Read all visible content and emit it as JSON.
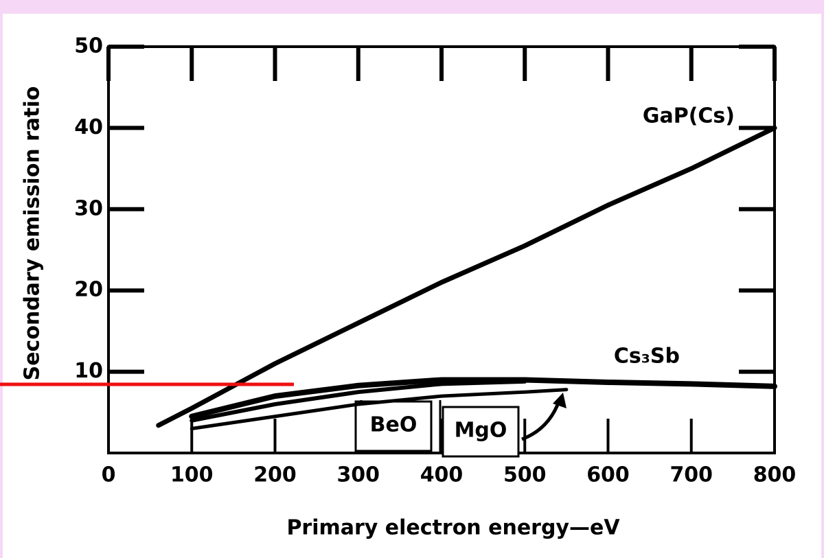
{
  "chart_data": {
    "type": "line",
    "xlabel": "Primary electron energy—eV",
    "ylabel": "Secondary emission ratio",
    "xlim": [
      0,
      800
    ],
    "xticks": [
      0,
      100,
      200,
      300,
      400,
      500,
      600,
      700,
      800
    ],
    "ylim": [
      0,
      50
    ],
    "yticks": [
      10,
      20,
      30,
      40,
      50
    ],
    "series": [
      {
        "name": "GaP(Cs)",
        "color": "#000000",
        "x": [
          60,
          100,
          200,
          300,
          400,
          500,
          600,
          700,
          800
        ],
        "values": [
          3.4,
          5.5,
          11,
          16,
          21,
          25.5,
          30.5,
          35,
          40
        ]
      },
      {
        "name": "Cs₃Sb",
        "color": "#000000",
        "x": [
          100,
          200,
          300,
          400,
          500,
          600,
          700,
          800
        ],
        "values": [
          4.5,
          7,
          8.3,
          9,
          9,
          8.7,
          8.5,
          8.2
        ]
      },
      {
        "name": "BeO",
        "color": "#000000",
        "x": [
          100,
          200,
          300,
          400,
          500
        ],
        "values": [
          4,
          6,
          7.5,
          8.5,
          8.8
        ]
      },
      {
        "name": "MgO",
        "color": "#000000",
        "x": [
          100,
          200,
          300,
          400,
          500,
          550
        ],
        "values": [
          3,
          4.5,
          6,
          7,
          7.5,
          7.8
        ]
      }
    ]
  }
}
